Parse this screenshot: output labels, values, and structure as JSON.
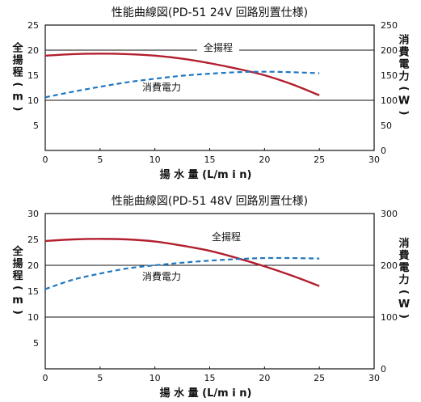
{
  "chart_data": [
    {
      "type": "line",
      "title": "性能曲線図(PD-51 24V 回路別置仕様)",
      "xlabel": "揚 水 量 (L/m i n)",
      "ylabel_left": [
        "全",
        "揚",
        "程",
        "(",
        "m",
        ")"
      ],
      "ylabel_right": [
        "消",
        "費",
        "電",
        "力",
        "(",
        "W",
        ")"
      ],
      "xlim": [
        0,
        30
      ],
      "ylim_left": [
        0,
        25
      ],
      "ylim_right": [
        0,
        250
      ],
      "x_ticks": [
        "0",
        "5",
        "10",
        "15",
        "20",
        "25",
        "30"
      ],
      "y_left_ticks": [
        "5",
        "10",
        "15",
        "20",
        "25"
      ],
      "y_right_ticks": [
        "0",
        "50",
        "100",
        "150",
        "200",
        "250"
      ],
      "grid": "horizontal lines at 10 and 20",
      "series": [
        {
          "name": "全揚程",
          "axis": "left",
          "style": "solid",
          "color": "#b21f2d",
          "points": [
            [
              0,
              18.9
            ],
            [
              2.5,
              19.2
            ],
            [
              5,
              19.3
            ],
            [
              7.5,
              19.2
            ],
            [
              10,
              18.9
            ],
            [
              12.5,
              18.3
            ],
            [
              15,
              17.4
            ],
            [
              17.5,
              16.3
            ],
            [
              20,
              15.0
            ],
            [
              22.5,
              13.2
            ],
            [
              25,
              11.0
            ]
          ]
        },
        {
          "name": "消費電力",
          "axis": "right",
          "style": "dashed",
          "color": "#1f77c0",
          "points": [
            [
              0,
              106
            ],
            [
              2.5,
              117
            ],
            [
              5,
              127
            ],
            [
              7.5,
              136
            ],
            [
              10,
              143
            ],
            [
              12.5,
              149
            ],
            [
              15,
              153
            ],
            [
              17.5,
              156
            ],
            [
              20,
              157
            ],
            [
              22.5,
              156
            ],
            [
              25,
              154
            ]
          ]
        }
      ],
      "annotations": [
        {
          "text": "全揚程",
          "series": 0
        },
        {
          "text": "消費電力",
          "series": 1
        }
      ]
    },
    {
      "type": "line",
      "title": "性能曲線図(PD-51 48V 回路別置仕様)",
      "xlabel": "揚 水 量 (L/m i n)",
      "ylabel_left": [
        "全",
        "揚",
        "程",
        "(",
        "m",
        ")"
      ],
      "ylabel_right": [
        "消",
        "費",
        "電",
        "力",
        "(",
        "W",
        ")"
      ],
      "xlim": [
        0,
        30
      ],
      "ylim_left": [
        0,
        30
      ],
      "ylim_right": [
        0,
        300
      ],
      "x_ticks": [
        "0",
        "5",
        "10",
        "15",
        "20",
        "25",
        "30"
      ],
      "y_left_ticks": [
        "5",
        "10",
        "15",
        "20",
        "25",
        "30"
      ],
      "y_right_ticks": [
        "0",
        "100",
        "200",
        "300"
      ],
      "grid": "horizontal lines at 10 and 20",
      "series": [
        {
          "name": "全揚程",
          "axis": "left",
          "style": "solid",
          "color": "#b21f2d",
          "points": [
            [
              0,
              24.7
            ],
            [
              2.5,
              25.0
            ],
            [
              5,
              25.1
            ],
            [
              7.5,
              25.0
            ],
            [
              10,
              24.6
            ],
            [
              12.5,
              23.8
            ],
            [
              15,
              22.8
            ],
            [
              17.5,
              21.4
            ],
            [
              20,
              19.8
            ],
            [
              22.5,
              18.0
            ],
            [
              25,
              16.0
            ]
          ]
        },
        {
          "name": "消費電力",
          "axis": "right",
          "style": "dashed",
          "color": "#1f77c0",
          "points": [
            [
              0,
              154
            ],
            [
              2.5,
              172
            ],
            [
              5,
              184
            ],
            [
              7.5,
              194
            ],
            [
              10,
              200
            ],
            [
              12.5,
              205
            ],
            [
              15,
              209
            ],
            [
              17.5,
              212
            ],
            [
              20,
              214
            ],
            [
              22.5,
              214
            ],
            [
              25,
              213
            ]
          ]
        }
      ],
      "annotations": [
        {
          "text": "全揚程",
          "series": 0
        },
        {
          "text": "消費電力",
          "series": 1
        }
      ]
    }
  ]
}
